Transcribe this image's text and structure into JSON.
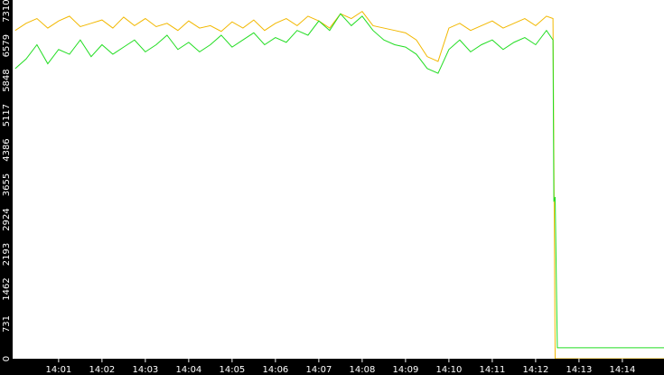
{
  "chart_data": {
    "type": "line",
    "xlim": [
      839.94,
      854.96
    ],
    "ylim": [
      0,
      7540
    ],
    "yticks": [
      0,
      731,
      1462,
      2193,
      2924,
      3655,
      4386,
      5117,
      5848,
      6579,
      7310
    ],
    "xticks": [
      {
        "value": 841,
        "label": "14:01"
      },
      {
        "value": 842,
        "label": "14:02"
      },
      {
        "value": 843,
        "label": "14:03"
      },
      {
        "value": 844,
        "label": "14:04"
      },
      {
        "value": 845,
        "label": "14:05"
      },
      {
        "value": 846,
        "label": "14:06"
      },
      {
        "value": 847,
        "label": "14:07"
      },
      {
        "value": 848,
        "label": "14:08"
      },
      {
        "value": 849,
        "label": "14:09"
      },
      {
        "value": 850,
        "label": "14:10"
      },
      {
        "value": 851,
        "label": "14:11"
      },
      {
        "value": 852,
        "label": "14:12"
      },
      {
        "value": 853,
        "label": "14:13"
      },
      {
        "value": 854,
        "label": "14:14"
      }
    ],
    "series": [
      {
        "color": "#f2b800",
        "x": [
          840,
          840.25,
          840.5,
          840.75,
          841,
          841.25,
          841.5,
          841.75,
          842,
          842.25,
          842.5,
          842.75,
          843,
          843.25,
          843.5,
          843.75,
          844,
          844.25,
          844.5,
          844.75,
          845,
          845.25,
          845.5,
          845.75,
          846,
          846.25,
          846.5,
          846.75,
          847,
          847.25,
          847.5,
          847.75,
          848,
          848.25,
          848.5,
          848.75,
          849,
          849.25,
          849.5,
          849.75,
          850,
          850.25,
          850.5,
          850.75,
          851,
          851.25,
          851.5,
          851.75,
          852,
          852.25,
          852.4,
          852.45,
          852.5,
          855
        ],
        "values": [
          6900,
          7050,
          7150,
          6950,
          7100,
          7200,
          6980,
          7050,
          7120,
          6950,
          7180,
          7000,
          7150,
          6980,
          7050,
          6900,
          7100,
          6950,
          7000,
          6880,
          7080,
          6950,
          7120,
          6900,
          7050,
          7150,
          7000,
          7200,
          7100,
          6950,
          7250,
          7150,
          7300,
          7000,
          6950,
          6900,
          6850,
          6700,
          6350,
          6250,
          6950,
          7050,
          6900,
          7000,
          7100,
          6950,
          7050,
          7150,
          7000,
          7200,
          7150,
          0,
          0,
          0
        ]
      },
      {
        "color": "#22dd22",
        "x": [
          840,
          840.25,
          840.5,
          840.75,
          841,
          841.25,
          841.5,
          841.75,
          842,
          842.25,
          842.5,
          842.75,
          843,
          843.25,
          843.5,
          843.75,
          844,
          844.25,
          844.5,
          844.75,
          845,
          845.25,
          845.5,
          845.75,
          846,
          846.25,
          846.5,
          846.75,
          847,
          847.25,
          847.5,
          847.75,
          848,
          848.25,
          848.5,
          848.75,
          849,
          849.25,
          849.5,
          849.75,
          850,
          850.25,
          850.5,
          850.75,
          851,
          851.25,
          851.5,
          851.75,
          852,
          852.25,
          852.4,
          852.42,
          852.45,
          852.5,
          855
        ],
        "values": [
          6100,
          6300,
          6600,
          6200,
          6500,
          6400,
          6700,
          6350,
          6600,
          6400,
          6550,
          6700,
          6450,
          6600,
          6800,
          6500,
          6650,
          6450,
          6600,
          6800,
          6550,
          6700,
          6850,
          6600,
          6750,
          6650,
          6900,
          6800,
          7100,
          6900,
          7250,
          7000,
          7200,
          6900,
          6700,
          6600,
          6550,
          6400,
          6100,
          6000,
          6500,
          6700,
          6450,
          6600,
          6700,
          6500,
          6650,
          6750,
          6600,
          6900,
          6700,
          3300,
          3400,
          230,
          230
        ]
      }
    ]
  }
}
